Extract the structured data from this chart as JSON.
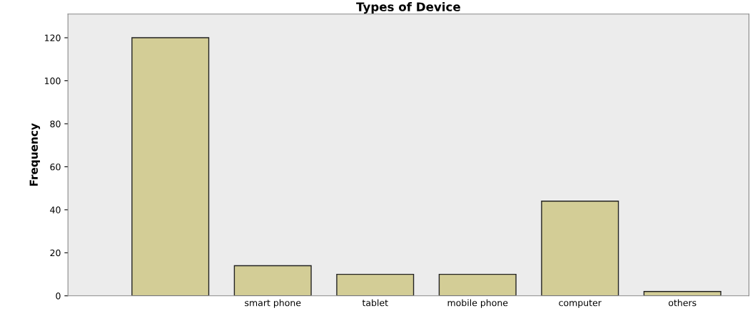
{
  "chart_data": {
    "type": "bar",
    "title": "Types of Device",
    "ylabel": "Frequency",
    "categories": [
      null,
      "smart phone",
      "tablet",
      "mobile phone",
      "computer",
      "others"
    ],
    "values": [
      120,
      14,
      10,
      10,
      44,
      2
    ],
    "color": "#d3cd96",
    "ylim": [
      0,
      131
    ],
    "yticks": [
      0,
      20,
      40,
      60,
      80,
      100,
      120
    ],
    "grid": false,
    "legend": false
  }
}
